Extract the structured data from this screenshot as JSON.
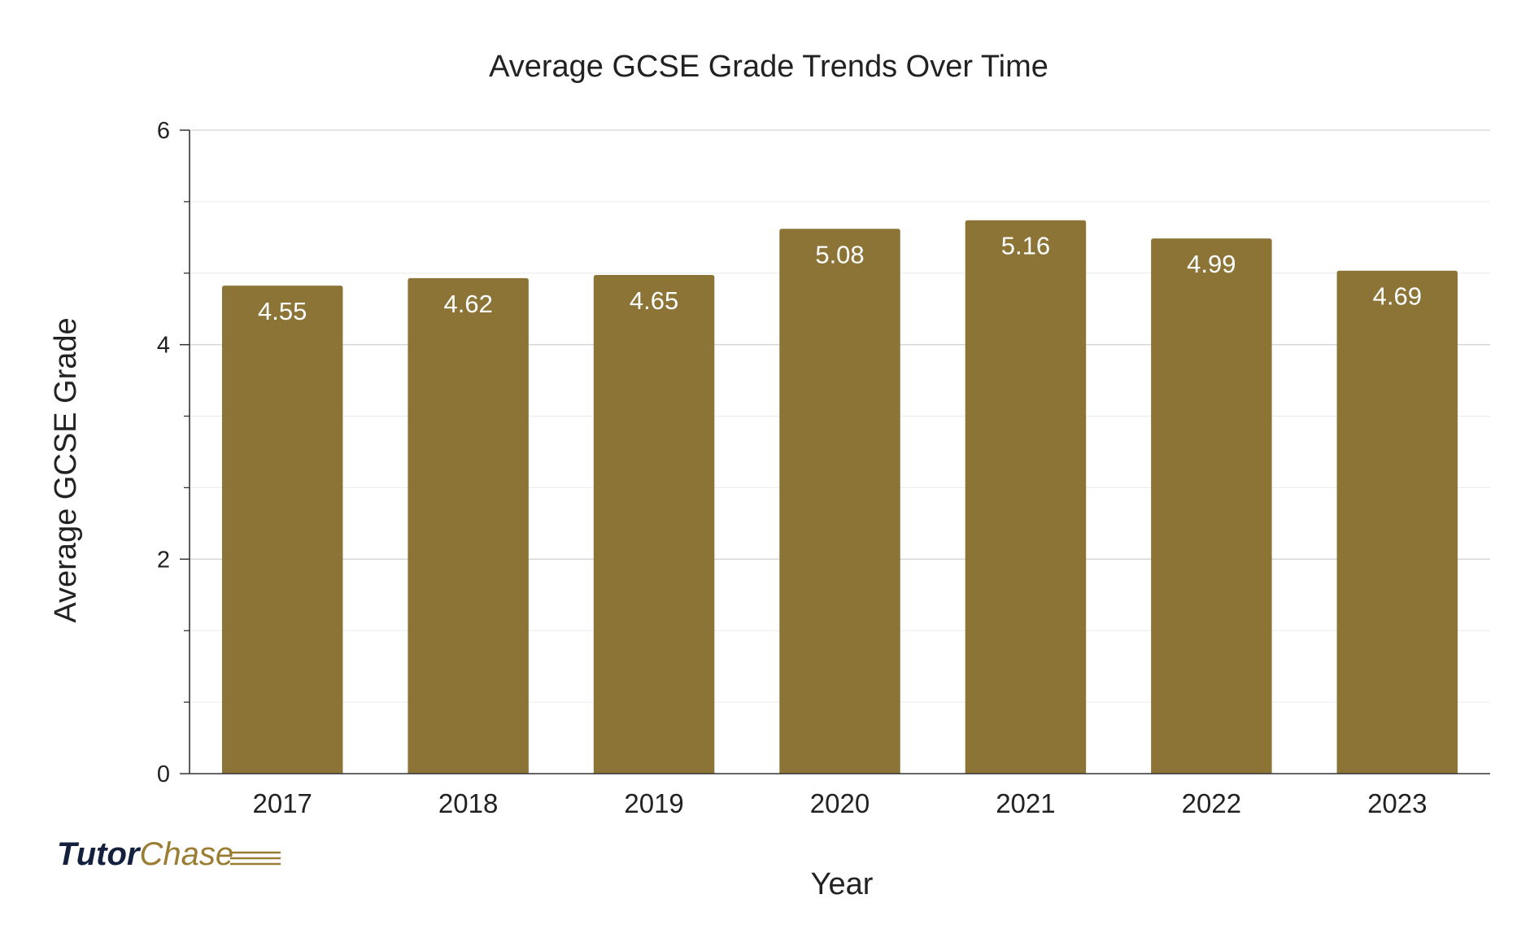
{
  "chart_data": {
    "type": "bar",
    "title": "Average GCSE Grade Trends Over Time",
    "xlabel": "Year",
    "ylabel": "Average GCSE Grade",
    "categories": [
      "2017",
      "2018",
      "2019",
      "2020",
      "2021",
      "2022",
      "2023"
    ],
    "values": [
      4.55,
      4.62,
      4.65,
      5.08,
      5.16,
      4.99,
      4.69
    ],
    "data_labels": [
      "4.55",
      "4.62",
      "4.65",
      "5.08",
      "5.16",
      "4.99",
      "4.69"
    ],
    "ylim": [
      0,
      6
    ],
    "y_ticks": [
      "0",
      "2",
      "4",
      "6"
    ],
    "grid": true,
    "legend": "none",
    "colors": {
      "bar": "#8b7436",
      "grid": "#dddddd",
      "axis": "#333333",
      "label_text": "#ffffff"
    }
  },
  "branding": {
    "logo_part1": "Tutor",
    "logo_part2": "Chase",
    "colors": {
      "part1": "#13213f",
      "part2": "#9a7d32"
    }
  }
}
